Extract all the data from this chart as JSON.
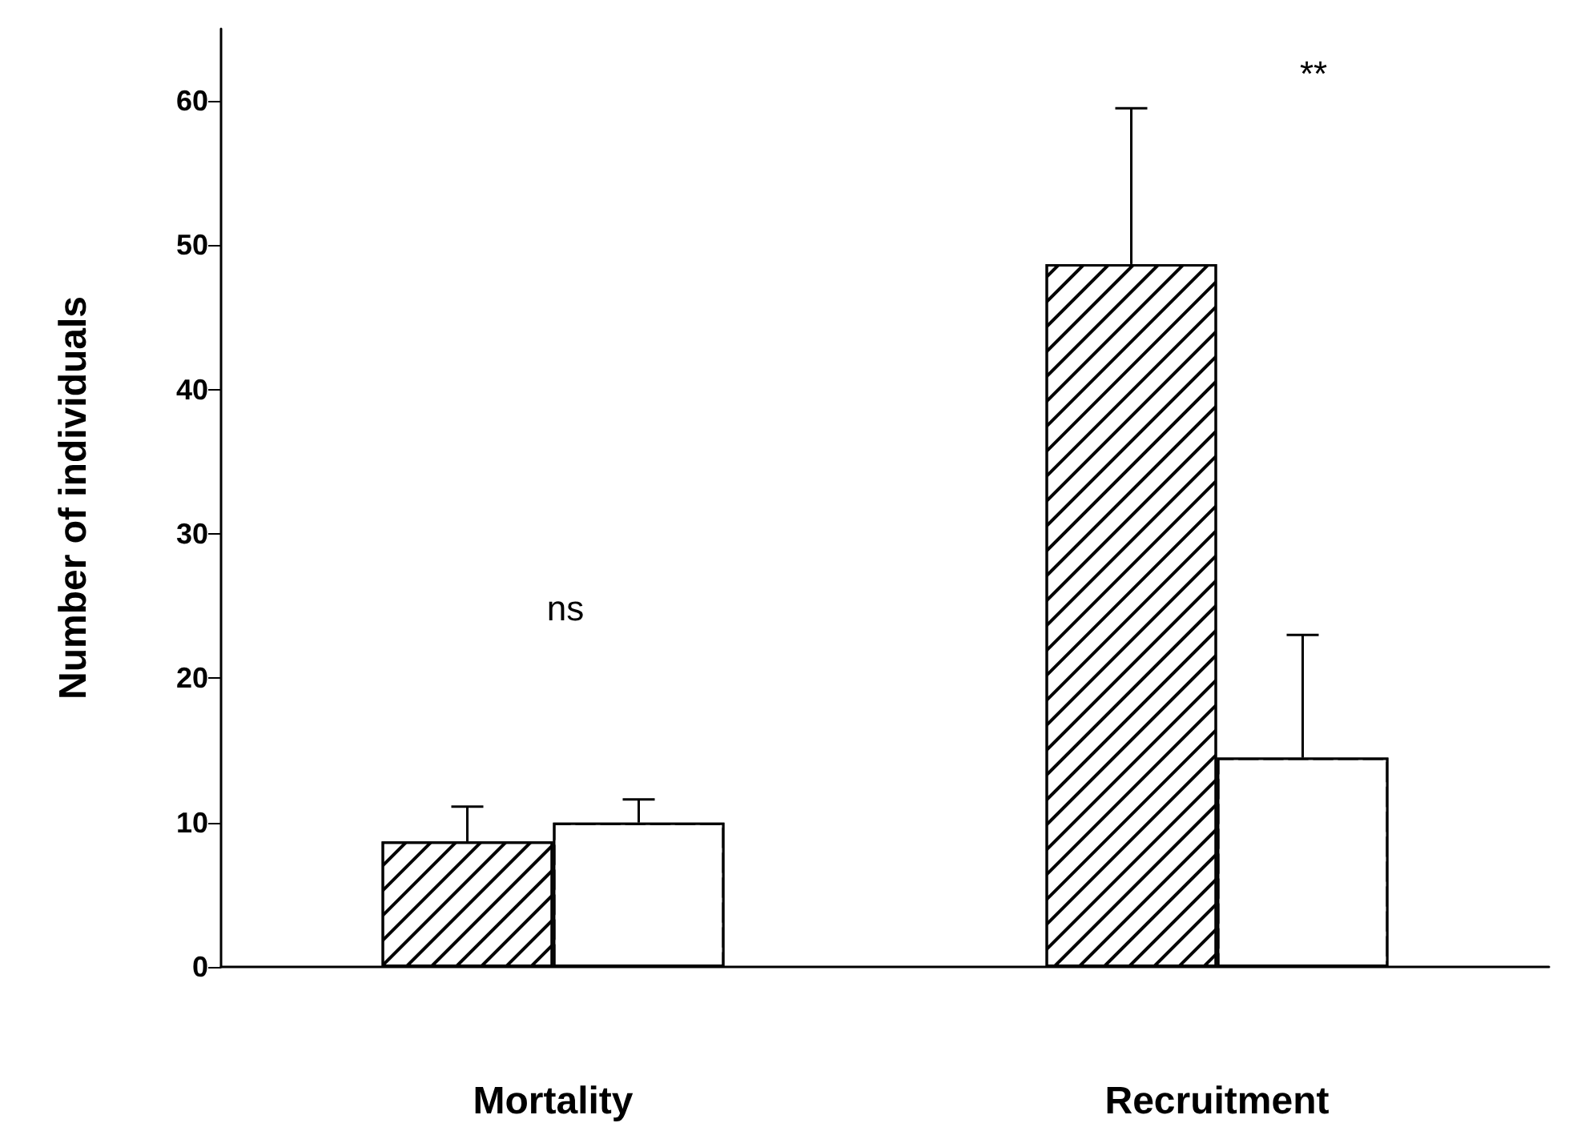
{
  "chart_data": {
    "type": "bar",
    "ylabel": "Number of individuals",
    "categories": [
      "Mortality",
      "Recruitment"
    ],
    "series": [
      {
        "color": "#000000",
        "values": [
          8.7,
          48.7
        ],
        "errors": [
          2.4,
          10.8
        ]
      },
      {
        "color": "#ffffff",
        "values": [
          10.0,
          14.5
        ],
        "errors": [
          1.6,
          8.5
        ]
      }
    ],
    "ylim": [
      0,
      65
    ],
    "yticks": [
      0,
      10,
      20,
      30,
      40,
      50,
      60
    ],
    "annotations": [
      "ns",
      "**"
    ]
  }
}
